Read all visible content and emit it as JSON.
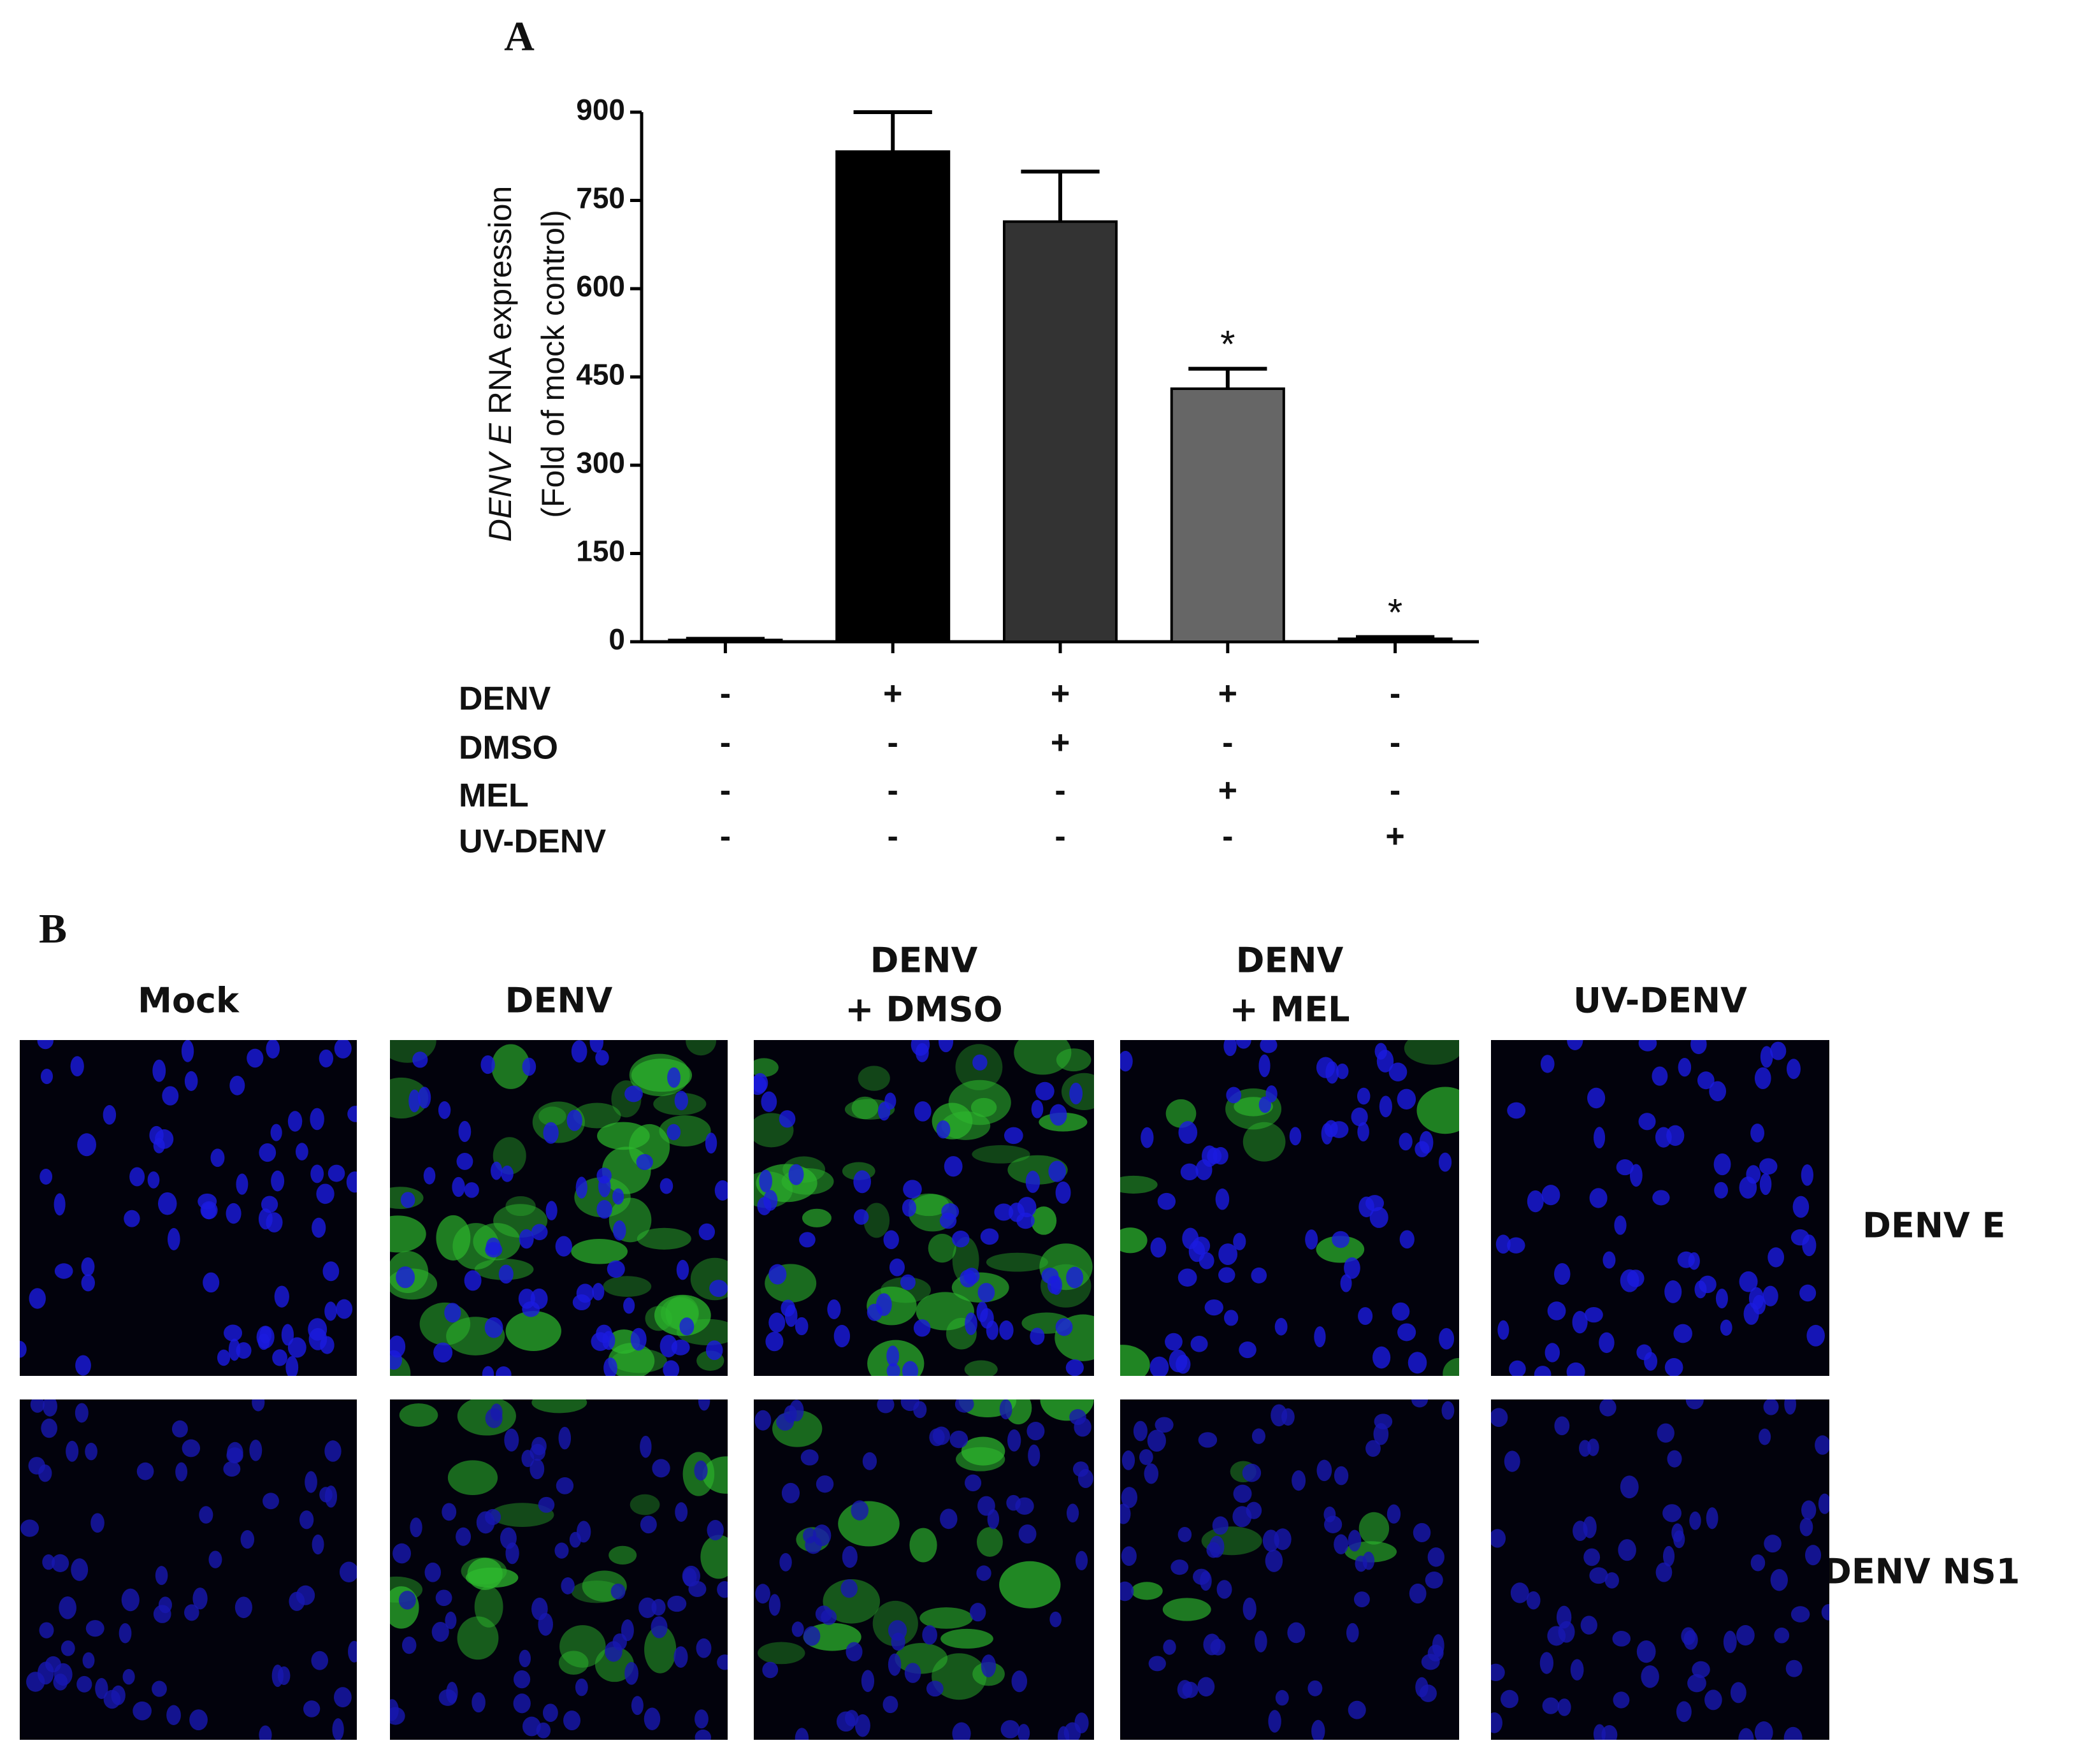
{
  "chart_data": {
    "type": "bar",
    "panel_a": "A",
    "panel_b": "B",
    "ylabel": [
      "DENV E",
      " RNA expression",
      "(Fold of mock control)"
    ],
    "categories": [
      null,
      null,
      null,
      null,
      null
    ],
    "values": [
      3,
      833,
      714,
      430,
      5
    ],
    "errors": [
      2,
      67,
      85,
      34,
      3
    ],
    "colors": [
      "#000000",
      "#000000",
      "#333333",
      "#666666",
      "#000000"
    ],
    "annotations": [
      null,
      null,
      null,
      "*",
      "*"
    ],
    "ylim": [
      0,
      900
    ],
    "yticks": [
      0,
      150,
      300,
      450,
      600,
      750,
      900
    ],
    "conditions": [
      {
        "name": "DENV",
        "values": [
          "-",
          "+",
          "+",
          "+",
          "-"
        ]
      },
      {
        "name": "DMSO",
        "values": [
          "-",
          "-",
          "+",
          "-",
          "-"
        ]
      },
      {
        "name": "MEL",
        "values": [
          "-",
          "-",
          "-",
          "+",
          "-"
        ]
      },
      {
        "name": "UV-DENV",
        "values": [
          "-",
          "-",
          "-",
          "-",
          "+"
        ]
      }
    ],
    "image_columns": [
      [
        "Mock"
      ],
      [
        "DENV"
      ],
      [
        "DENV",
        "+ DMSO"
      ],
      [
        "DENV",
        "+ MEL"
      ],
      [
        "UV-DENV"
      ]
    ],
    "image_rows": [
      "DENV E",
      "DENV NS1"
    ]
  }
}
